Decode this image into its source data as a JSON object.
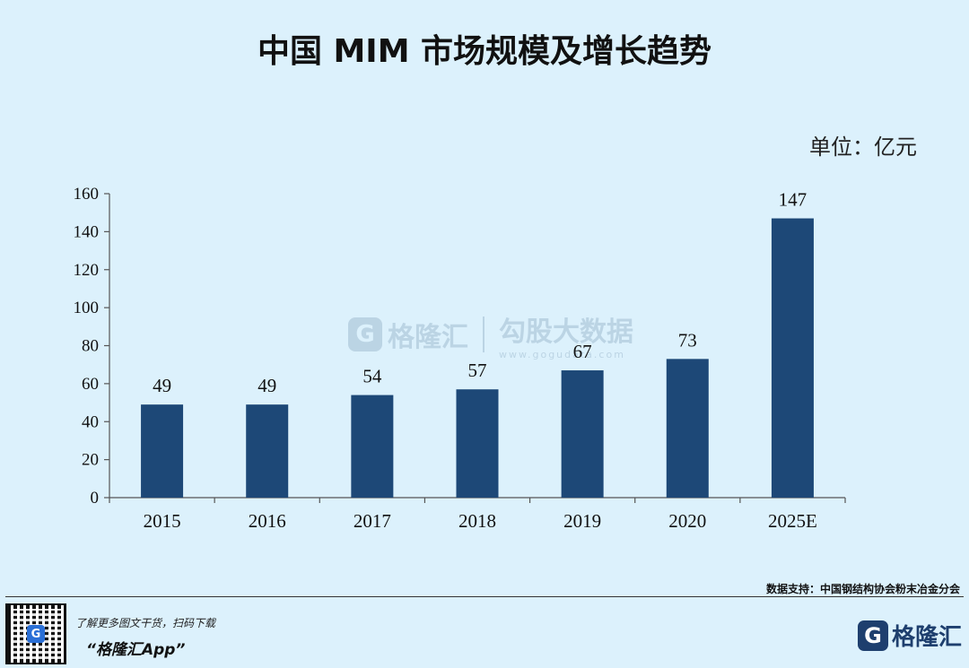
{
  "title": "中国 MIM 市场规模及增长趋势",
  "unit_label": "单位：亿元",
  "source": "数据支持：中国钢结构协会粉末冶金分会",
  "watermark": {
    "name": "格隆汇",
    "name2": "勾股大数据",
    "url": "www.gogudata.com",
    "logo_letter": "G"
  },
  "footer": {
    "promo_line": "了解更多图文干货，扫码下载",
    "app_name": "“格隆汇App”",
    "brand_name": "格隆汇",
    "logo_letter": "G"
  },
  "colors": {
    "bar": "#1d4877",
    "background": "#dcf1fc",
    "axis": "#555555"
  },
  "chart_data": {
    "type": "bar",
    "categories": [
      "2015",
      "2016",
      "2017",
      "2018",
      "2019",
      "2020",
      "2025E"
    ],
    "values": [
      49,
      49,
      54,
      57,
      67,
      73,
      147
    ],
    "ylim": [
      0,
      160
    ],
    "yticks": [
      0,
      20,
      40,
      60,
      80,
      100,
      120,
      140,
      160
    ],
    "grid": false,
    "data_labels": true
  }
}
